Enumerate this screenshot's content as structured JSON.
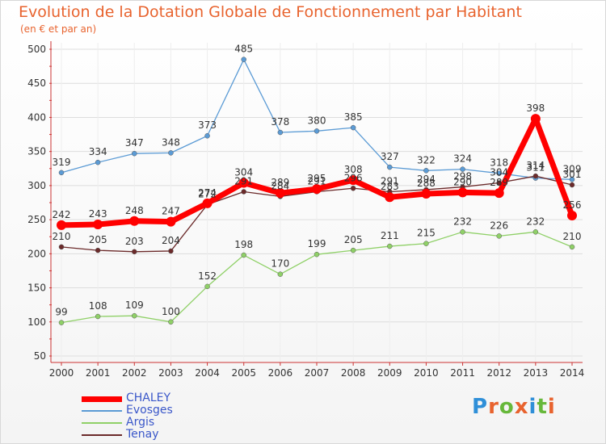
{
  "header": {
    "title": "Evolution de la Dotation Globale de Fonctionnement par Habitant",
    "subtitle": "(en € et par an)"
  },
  "logo": {
    "text": "Proxiti",
    "colors": [
      "#2f8fd8",
      "#e8632e",
      "#67b83b",
      "#e8632e",
      "#2f8fd8",
      "#67b83b",
      "#e8632e"
    ]
  },
  "chart_data": {
    "type": "line",
    "title": "Evolution de la Dotation Globale de Fonctionnement par Habitant",
    "subtitle": "(en € et par an)",
    "x": [
      "2000",
      "2001",
      "2002",
      "2003",
      "2004",
      "2005",
      "2006",
      "2007",
      "2008",
      "2009",
      "2010",
      "2011",
      "2012",
      "2013",
      "2014"
    ],
    "ylim": [
      50,
      500
    ],
    "yticks": [
      50,
      100,
      150,
      200,
      250,
      300,
      350,
      400,
      450,
      500
    ],
    "grid": true,
    "legend_position": "bottom-left",
    "series": [
      {
        "name": "CHALEY",
        "color": "#ff0000",
        "values": [
          242,
          243,
          248,
          247,
          274,
          304,
          289,
          295,
          308,
          283,
          288,
          290,
          289,
          398,
          256
        ],
        "labels": [
          "242",
          "243",
          "248",
          "247",
          "274",
          "304",
          "289",
          "295",
          "308",
          "283",
          "288",
          "290",
          "289",
          "398",
          "256"
        ]
      },
      {
        "name": "Evosges",
        "color": "#5b9bd5",
        "values": [
          319,
          334,
          347,
          348,
          373,
          485,
          378,
          380,
          385,
          327,
          322,
          324,
          318,
          311,
          309
        ],
        "labels": [
          "319",
          "334",
          "347",
          "348",
          "373",
          "485",
          "378",
          "380",
          "385",
          "327",
          "322",
          "324",
          "318",
          "311",
          "309"
        ]
      },
      {
        "name": "Argis",
        "color": "#8fd067",
        "values": [
          99,
          108,
          109,
          100,
          152,
          198,
          170,
          199,
          205,
          211,
          215,
          232,
          226,
          232,
          210
        ],
        "labels": [
          "99",
          "108",
          "109",
          "100",
          "152",
          "198",
          "170",
          "199",
          "205",
          "211",
          "215",
          "232",
          "226",
          "232",
          "210"
        ]
      },
      {
        "name": "Tenay",
        "color": "#6b2a2a",
        "values": [
          210,
          205,
          203,
          204,
          272,
          291,
          284,
          291,
          296,
          291,
          294,
          298,
          304,
          314,
          301
        ],
        "labels": [
          "210",
          "205",
          "203",
          "204",
          "272",
          "291",
          "284",
          "291",
          "296",
          "291",
          "294",
          "298",
          "304",
          "314",
          "301"
        ]
      }
    ]
  }
}
